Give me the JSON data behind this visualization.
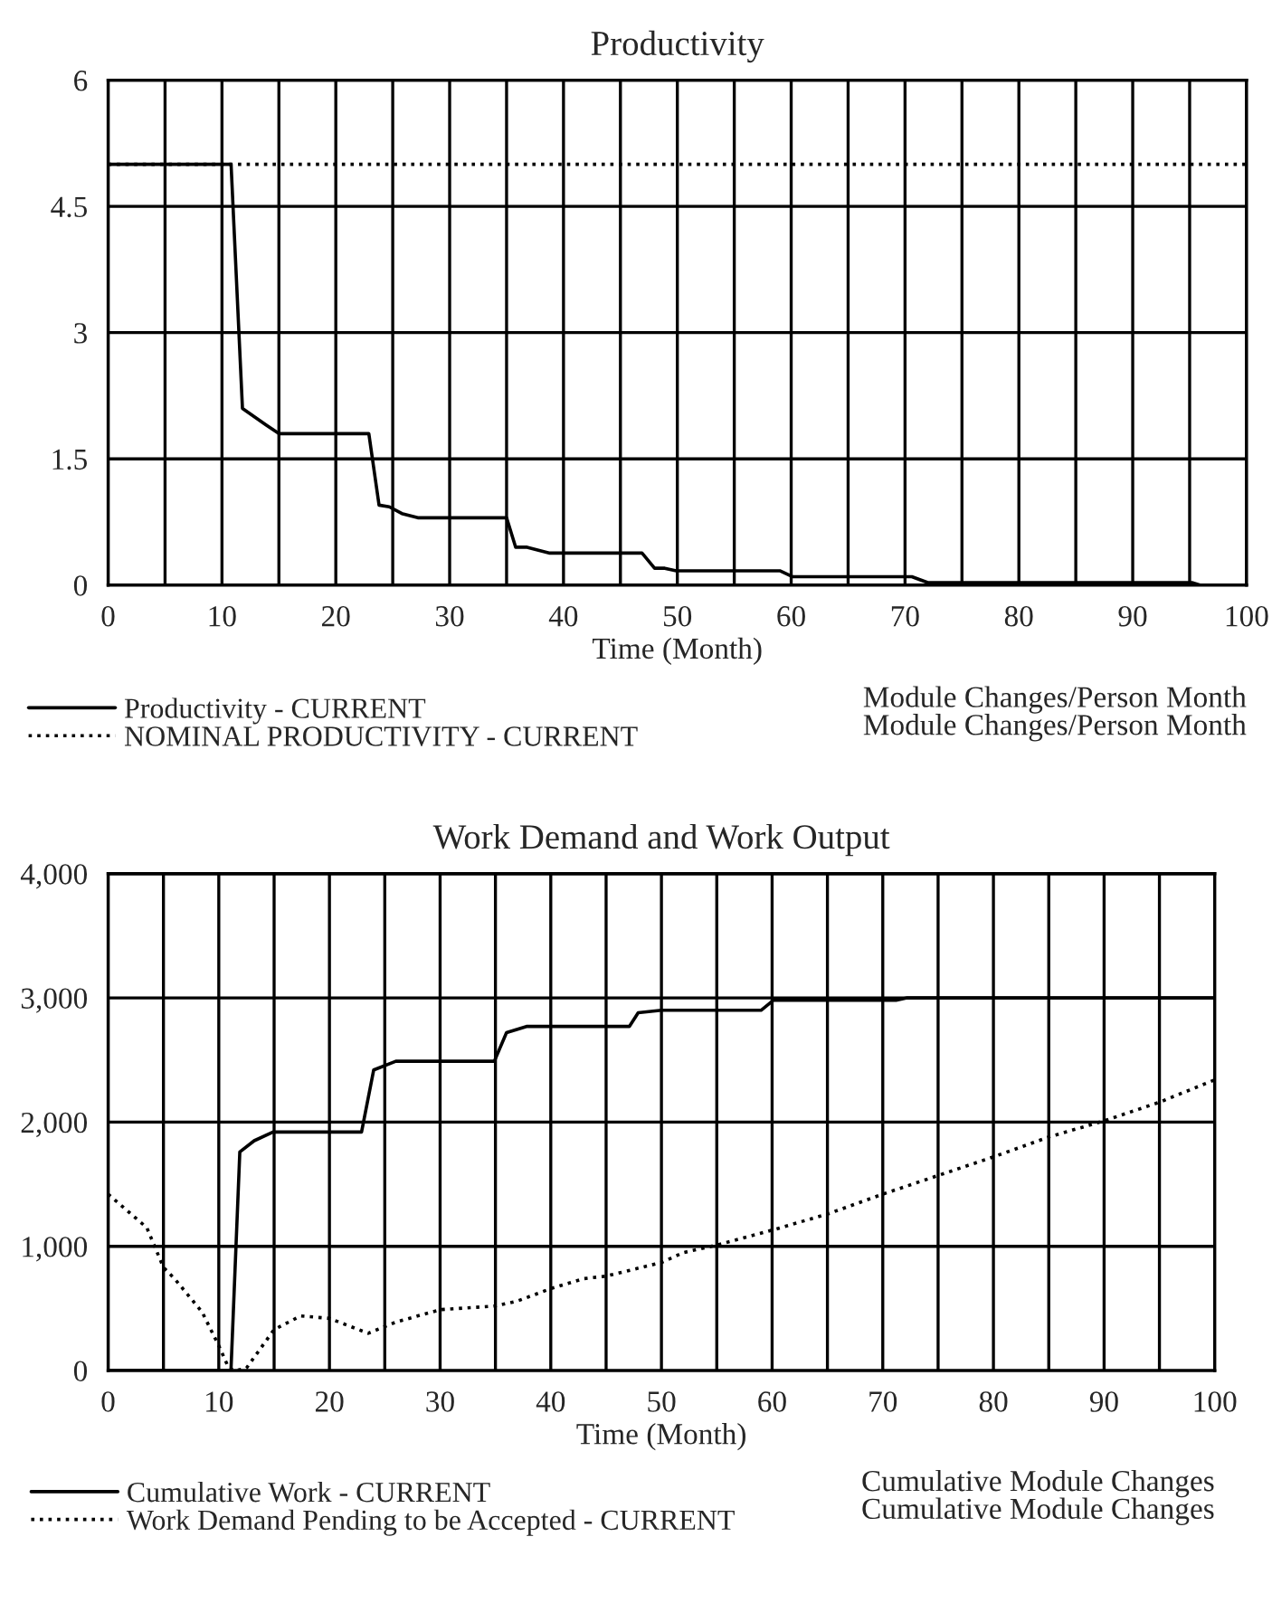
{
  "chart_data": [
    {
      "type": "line",
      "title": "Productivity",
      "xlabel": "Time (Month)",
      "xlim": [
        0,
        100
      ],
      "xticks": [
        0,
        {
          "value": 5,
          "label": null
        },
        10,
        {
          "value": 15,
          "label": null
        },
        20,
        {
          "value": 25,
          "label": null
        },
        30,
        {
          "value": 35,
          "label": null
        },
        40,
        {
          "value": 45,
          "label": null
        },
        50,
        {
          "value": 55,
          "label": null
        },
        60,
        {
          "value": 65,
          "label": null
        },
        70,
        {
          "value": 75,
          "label": null
        },
        80,
        {
          "value": 85,
          "label": null
        },
        90,
        {
          "value": 95,
          "label": null
        },
        100
      ],
      "ylim": [
        0,
        6
      ],
      "yticks": [
        0,
        1.5,
        3,
        4.5,
        6
      ],
      "grid": true,
      "legend": "bottom",
      "series": [
        {
          "name": "Productivity - CURRENT",
          "color": "#000000",
          "line_style": "solid",
          "x": [
            0,
            10.8,
            11.8,
            13.9,
            15,
            22.9,
            23.8,
            24.7,
            25.8,
            27.2,
            35,
            35.8,
            36.8,
            38.8,
            46.9,
            48,
            48.9,
            49.9,
            59,
            60.1,
            70.6,
            72,
            95.2,
            95.9,
            100
          ],
          "values": [
            5,
            5,
            2.1,
            1.9,
            1.8,
            1.8,
            0.95,
            0.93,
            0.85,
            0.8,
            0.8,
            0.45,
            0.45,
            0.38,
            0.38,
            0.2,
            0.2,
            0.17,
            0.17,
            0.1,
            0.1,
            0.03,
            0.03,
            0,
            0
          ]
        },
        {
          "name": "NOMINAL PRODUCTIVITY - CURRENT",
          "color": "#000000",
          "line_style": "dotted",
          "x": [
            0,
            100
          ],
          "values": [
            5,
            5
          ]
        }
      ],
      "annotations": [
        "Module Changes/Person Month",
        "Module Changes/Person Month"
      ]
    },
    {
      "type": "line",
      "title": "Work Demand and Work Output",
      "xlabel": "Time (Month)",
      "xlim": [
        0,
        100
      ],
      "xticks": [
        0,
        {
          "value": 5,
          "label": null
        },
        10,
        {
          "value": 15,
          "label": null
        },
        20,
        {
          "value": 25,
          "label": null
        },
        30,
        {
          "value": 35,
          "label": null
        },
        40,
        {
          "value": 45,
          "label": null
        },
        50,
        {
          "value": 55,
          "label": null
        },
        60,
        {
          "value": 65,
          "label": null
        },
        70,
        {
          "value": 75,
          "label": null
        },
        80,
        {
          "value": 85,
          "label": null
        },
        90,
        {
          "value": 95,
          "label": null
        },
        100
      ],
      "ylim": [
        0,
        4000
      ],
      "yticks": [
        0,
        {
          "value": 1000,
          "label": "1,000"
        },
        {
          "value": 2000,
          "label": "2,000"
        },
        {
          "value": 3000,
          "label": "3,000"
        },
        {
          "value": 4000,
          "label": "4,000"
        }
      ],
      "grid": true,
      "legend": "bottom",
      "series": [
        {
          "name": "Cumulative Work - CURRENT",
          "color": "#000000",
          "line_style": "solid",
          "x": [
            0,
            11.1,
            11.9,
            13.2,
            14.9,
            22.9,
            24,
            26,
            34.9,
            36,
            37.8,
            47.1,
            47.9,
            50,
            59,
            60.1,
            71.2,
            72.2,
            100
          ],
          "values": [
            0,
            0,
            1760,
            1850,
            1920,
            1920,
            2420,
            2490,
            2490,
            2720,
            2770,
            2770,
            2880,
            2900,
            2900,
            2980,
            2980,
            3000,
            3000
          ]
        },
        {
          "name": "Work Demand Pending to be Accepted - CURRENT",
          "color": "#000000",
          "line_style": "dotted",
          "x": [
            0,
            3.5,
            5,
            6,
            8.5,
            10,
            10.9,
            11.5,
            12.5,
            15,
            17.4,
            20,
            23.5,
            26,
            30,
            35,
            37,
            40,
            43,
            45,
            50,
            52,
            55,
            60,
            65,
            70,
            75,
            80,
            85,
            90,
            95,
            100
          ],
          "values": [
            1420,
            1150,
            830,
            740,
            470,
            200,
            20,
            0,
            20,
            330,
            440,
            420,
            300,
            390,
            490,
            520,
            560,
            660,
            740,
            760,
            870,
            950,
            1010,
            1130,
            1260,
            1420,
            1570,
            1720,
            1880,
            2010,
            2160,
            2340
          ]
        }
      ],
      "annotations": [
        "Cumulative Module Changes",
        "Cumulative Module Changes"
      ]
    }
  ]
}
